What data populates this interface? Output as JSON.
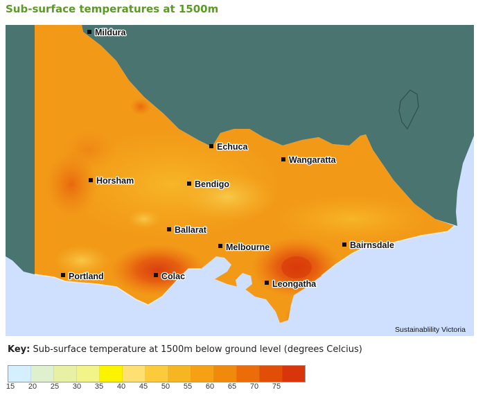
{
  "title": "Sub-surface temperatures at 1500m",
  "credit": "Sustainablility Victoria",
  "key": {
    "label": "Key:",
    "text": "Sub-surface temperature at 1500m below ground level (degrees Celcius)"
  },
  "legend": {
    "ticks": [
      "15",
      "20",
      "25",
      "30",
      "35",
      "40",
      "45",
      "50",
      "55",
      "60",
      "65",
      "70",
      "75"
    ],
    "colors": [
      "#d4f0ff",
      "#dff0cf",
      "#e8f0a5",
      "#f2f48a",
      "#fbf300",
      "#fde071",
      "#fbcb3c",
      "#f6b624",
      "#f5a015",
      "#f08a0c",
      "#ec6c09",
      "#e04e08",
      "#d8350a"
    ]
  },
  "cities": [
    {
      "id": "mildura",
      "name": "Mildura"
    },
    {
      "id": "echuca",
      "name": "Echuca"
    },
    {
      "id": "wangaratta",
      "name": "Wangaratta"
    },
    {
      "id": "horsham",
      "name": "Horsham"
    },
    {
      "id": "bendigo",
      "name": "Bendigo"
    },
    {
      "id": "ballarat",
      "name": "Ballarat"
    },
    {
      "id": "melbourne",
      "name": "Melbourne"
    },
    {
      "id": "bairnsdale",
      "name": "Bairnsdale"
    },
    {
      "id": "portland",
      "name": "Portland"
    },
    {
      "id": "colac",
      "name": "Colac"
    },
    {
      "id": "leongatha",
      "name": "Leongatha"
    }
  ],
  "colors": {
    "title": "#5a9a24",
    "land_outside": "#4a7470",
    "sea": "#cfe0ff",
    "base_temperature": "#f29a18"
  }
}
